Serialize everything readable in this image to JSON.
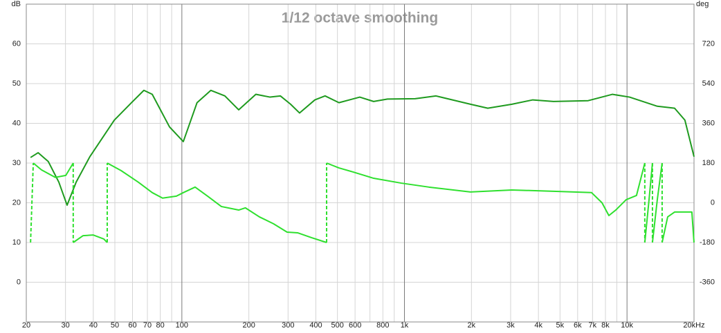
{
  "chart_data": {
    "type": "line",
    "title": "1/12 octave smoothing",
    "y_label": "dB",
    "y2_label": "deg",
    "xscale": "log",
    "grid": true,
    "xlim": [
      20,
      20000
    ],
    "xticks": [
      20,
      30,
      40,
      50,
      60,
      70,
      80,
      100,
      200,
      300,
      400,
      500,
      600,
      800,
      {
        "value": 1000,
        "label": "1k"
      },
      {
        "value": 2000,
        "label": "2k"
      },
      {
        "value": 3000,
        "label": "3k"
      },
      {
        "value": 4000,
        "label": "4k"
      },
      {
        "value": 5000,
        "label": "5k"
      },
      {
        "value": 6000,
        "label": "6k"
      },
      {
        "value": 7000,
        "label": "7k"
      },
      {
        "value": 8000,
        "label": "8k"
      },
      {
        "value": 10000,
        "label": "10k"
      },
      {
        "value": 20000,
        "label": "20kHz"
      }
    ],
    "x_minor_grid": [
      90,
      700,
      900,
      9000
    ],
    "ylim": [
      -10,
      70
    ],
    "yticks": [
      0,
      10,
      20,
      30,
      40,
      50,
      60
    ],
    "y2lim": [
      -540,
      900
    ],
    "y2ticks": [
      -360,
      -180,
      0,
      180,
      360,
      540,
      720
    ],
    "series": [
      {
        "color": "#1e9a1e",
        "x": [
          20.9,
          22.6,
          25.1,
          28.0,
          30.5,
          33.5,
          38.6,
          49.7,
          59.4,
          67.5,
          73.6,
          88.0,
          101.5,
          117,
          135,
          156,
          180,
          215,
          249,
          277,
          308,
          338,
          396,
          440,
          508,
          630,
          727,
          839,
          1117,
          1384,
          1980,
          2368,
          3040,
          3772,
          4675,
          6690,
          8590,
          10270,
          13680,
          16360,
          18200,
          20000
        ],
        "values": [
          31.4,
          32.6,
          30.4,
          25.2,
          19.4,
          25.2,
          31.6,
          40.8,
          45.2,
          48.3,
          47.3,
          39.1,
          35.4,
          45.2,
          48.3,
          46.9,
          43.4,
          47.3,
          46.6,
          46.9,
          44.8,
          42.6,
          45.9,
          46.9,
          45.2,
          46.6,
          45.5,
          46.1,
          46.2,
          46.9,
          44.8,
          43.8,
          44.8,
          45.9,
          45.5,
          45.7,
          47.3,
          46.6,
          44.3,
          43.8,
          40.8,
          31.6
        ]
      },
      {
        "color": "#2ee02e",
        "axis": "y2",
        "wrap_style": "dashed",
        "x": [
          20.9,
          21.2,
          21.5,
          23.4,
          27.0,
          30.1,
          32.5,
          32.5,
          32.5,
          36.0,
          40.0,
          44.6,
          46.2,
          46.2,
          46.2,
          53.3,
          63.8,
          73.6,
          81.9,
          94.5,
          101.5,
          114.7,
          130.5,
          150.5,
          180,
          193,
          223,
          258,
          297,
          331,
          382,
          447,
          447,
          447,
          508,
          586,
          727,
          968,
          1288,
          1980,
          3040,
          4675,
          6930,
          7720,
          8290,
          8900,
          9910,
          11030,
          12020,
          12020,
          12020,
          12560,
          13010,
          13010,
          13010,
          13680,
          14380,
          14380,
          14380,
          15230,
          16360,
          19560,
          20000
        ],
        "values": [
          -180,
          null,
          180,
          149,
          115,
          124,
          180,
          null,
          -180,
          -149,
          -146,
          -164,
          -180,
          null,
          180,
          146,
          93,
          46,
          21,
          30,
          46,
          71,
          30,
          -17,
          -33,
          -23,
          -64,
          -95,
          -133,
          -136,
          -158,
          -180,
          null,
          180,
          158,
          140,
          111,
          89,
          71,
          49,
          58,
          52,
          46,
          0,
          -58,
          -33,
          14,
          33,
          180,
          null,
          -180,
          14,
          180,
          null,
          -180,
          14,
          180,
          null,
          -180,
          -64,
          -42,
          -42,
          -180
        ]
      }
    ]
  }
}
